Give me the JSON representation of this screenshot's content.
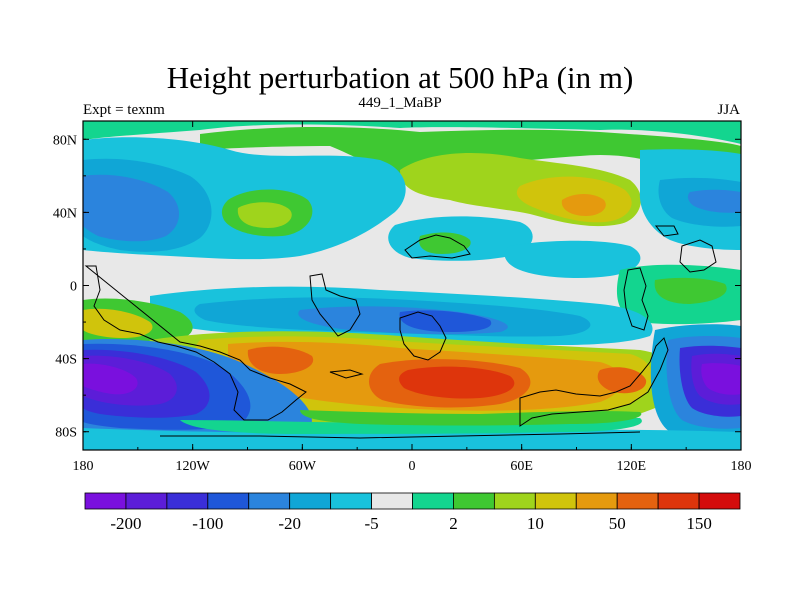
{
  "chart_data": {
    "type": "heatmap",
    "title": "Height perturbation at 500 hPa (in m)",
    "left_subtitle": "Expt = texnm",
    "center_subtitle": "449_1_MaBP",
    "right_subtitle": "JJA",
    "x_ticks": [
      "180",
      "120W",
      "60W",
      "0",
      "60E",
      "120E",
      "180"
    ],
    "y_ticks": [
      "80N",
      "40N",
      "0",
      "40S",
      "80S"
    ],
    "xlim": [
      -180,
      180
    ],
    "ylim": [
      -90,
      90
    ],
    "colorbar_labels": [
      "-200",
      "-100",
      "-20",
      "-5",
      "2",
      "10",
      "50",
      "150"
    ],
    "colorbar_colors": [
      "#7a10de",
      "#5c1dd8",
      "#3a2ed8",
      "#1f57d9",
      "#2b84dd",
      "#10a6d6",
      "#19c2dc",
      "#e8e8e8",
      "#13d58f",
      "#3fc832",
      "#9fd41c",
      "#d0c40c",
      "#e59a0e",
      "#e4620f",
      "#de350c",
      "#d40c0c"
    ]
  }
}
